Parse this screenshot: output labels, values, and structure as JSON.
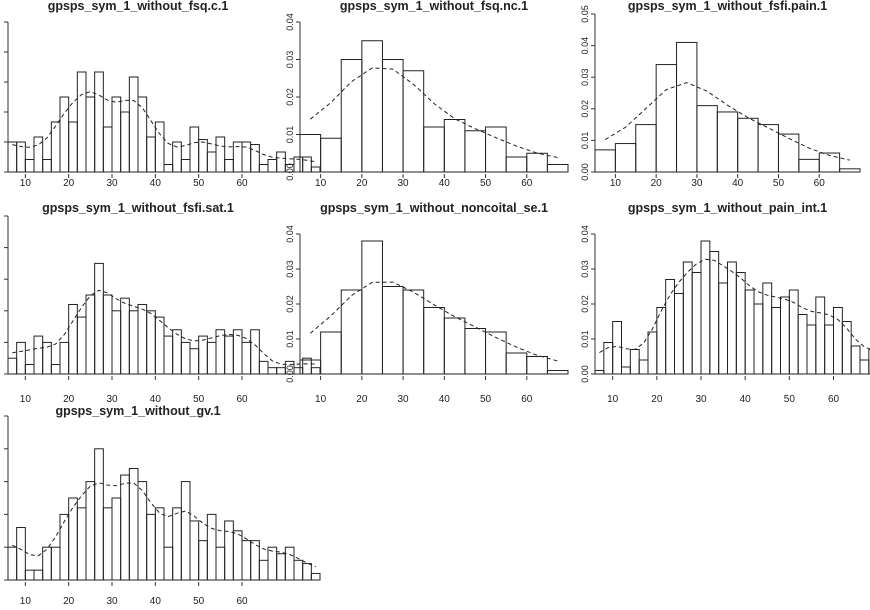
{
  "chart_data": [
    {
      "type": "bar",
      "title": "gpsps_sym_1_without_fsq.c.1",
      "bin_width": 2,
      "x_start": 6,
      "values": [
        0.012,
        0.012,
        0.005,
        0.014,
        0.005,
        0.02,
        0.03,
        0.02,
        0.04,
        0.03,
        0.04,
        0.018,
        0.03,
        0.024,
        0.038,
        0.03,
        0.014,
        0.02,
        0.003,
        0.012,
        0.005,
        0.018,
        0.013,
        0.008,
        0.014,
        0.005,
        0.012,
        0.012,
        0.011,
        0.003,
        0.005,
        0.008,
        0.003,
        0.006,
        0.006,
        0.002
      ],
      "xlim": [
        6,
        66
      ],
      "ylim": [
        0,
        0.06
      ],
      "xticks": [
        10,
        20,
        30,
        40,
        50,
        60
      ],
      "yticks": []
    },
    {
      "type": "bar",
      "title": "gpsps_sym_1_without_fsq.nc.1",
      "bin_width": 5,
      "x_start": 5,
      "values": [
        0.01,
        0.009,
        0.03,
        0.035,
        0.03,
        0.027,
        0.012,
        0.014,
        0.011,
        0.012,
        0.004,
        0.005,
        0.002
      ],
      "xlim": [
        5,
        70
      ],
      "ylim": [
        0,
        0.04
      ],
      "xticks": [
        10,
        20,
        30,
        40,
        50,
        60
      ],
      "yticks": [
        0.0,
        0.01,
        0.02,
        0.03,
        0.04
      ]
    },
    {
      "type": "bar",
      "title": "gpsps_sym_1_without_fsfi.pain.1",
      "bin_width": 5,
      "x_start": 5,
      "values": [
        0.007,
        0.009,
        0.015,
        0.034,
        0.041,
        0.021,
        0.019,
        0.017,
        0.015,
        0.012,
        0.004,
        0.006,
        0.001
      ],
      "xlim": [
        5,
        70
      ],
      "ylim": [
        0,
        0.05
      ],
      "xticks": [
        10,
        20,
        30,
        40,
        50,
        60
      ],
      "yticks": [
        0.0,
        0.01,
        0.02,
        0.03,
        0.04,
        0.05
      ]
    },
    {
      "type": "bar",
      "title": "gpsps_sym_1_without_fsfi.sat.1",
      "bin_width": 2,
      "x_start": 6,
      "values": [
        0.005,
        0.01,
        0.003,
        0.012,
        0.01,
        0.003,
        0.01,
        0.022,
        0.018,
        0.025,
        0.035,
        0.025,
        0.02,
        0.024,
        0.02,
        0.022,
        0.02,
        0.018,
        0.012,
        0.014,
        0.01,
        0.008,
        0.012,
        0.01,
        0.014,
        0.012,
        0.014,
        0.01,
        0.014,
        0.004,
        0.002,
        0.002,
        0.004,
        0.002,
        0.005,
        0.002
      ],
      "xlim": [
        6,
        66
      ],
      "ylim": [
        0,
        0.05
      ],
      "xticks": [
        10,
        20,
        30,
        40,
        50,
        60
      ],
      "yticks": []
    },
    {
      "type": "bar",
      "title": "gpsps_sym_1_without_noncoital_se.1",
      "bin_width": 5,
      "x_start": 5,
      "values": [
        0.004,
        0.012,
        0.024,
        0.038,
        0.025,
        0.024,
        0.019,
        0.016,
        0.013,
        0.012,
        0.006,
        0.005,
        0.001
      ],
      "xlim": [
        5,
        70
      ],
      "ylim": [
        0,
        0.04
      ],
      "xticks": [
        10,
        20,
        30,
        40,
        50,
        60
      ],
      "yticks": [
        0.0,
        0.01,
        0.02,
        0.03,
        0.04
      ]
    },
    {
      "type": "bar",
      "title": "gpsps_sym_1_without_pain_int.1",
      "bin_width": 2,
      "x_start": 6,
      "values": [
        0.001,
        0.009,
        0.015,
        0.002,
        0.007,
        0.004,
        0.012,
        0.019,
        0.027,
        0.023,
        0.032,
        0.029,
        0.038,
        0.035,
        0.026,
        0.032,
        0.029,
        0.024,
        0.02,
        0.026,
        0.019,
        0.022,
        0.024,
        0.017,
        0.014,
        0.022,
        0.014,
        0.019,
        0.015,
        0.008,
        0.004,
        0.007,
        0.009,
        0.005,
        0.005,
        0.002
      ],
      "xlim": [
        6,
        66
      ],
      "ylim": [
        0,
        0.04
      ],
      "xticks": [
        10,
        20,
        30,
        40,
        50,
        60
      ],
      "yticks": [
        0.0,
        0.01,
        0.02,
        0.03,
        0.04
      ]
    },
    {
      "type": "bar",
      "title": "gpsps_sym_1_without_gv.1",
      "bin_width": 2,
      "x_start": 6,
      "values": [
        0.01,
        0.016,
        0.003,
        0.003,
        0.01,
        0.01,
        0.02,
        0.025,
        0.022,
        0.03,
        0.04,
        0.022,
        0.025,
        0.032,
        0.034,
        0.03,
        0.02,
        0.022,
        0.01,
        0.022,
        0.03,
        0.018,
        0.012,
        0.02,
        0.01,
        0.018,
        0.015,
        0.012,
        0.012,
        0.006,
        0.01,
        0.008,
        0.01,
        0.006,
        0.005,
        0.002
      ],
      "xlim": [
        6,
        66
      ],
      "ylim": [
        0,
        0.05
      ],
      "xticks": [
        10,
        20,
        30,
        40,
        50,
        60
      ],
      "yticks": []
    }
  ]
}
